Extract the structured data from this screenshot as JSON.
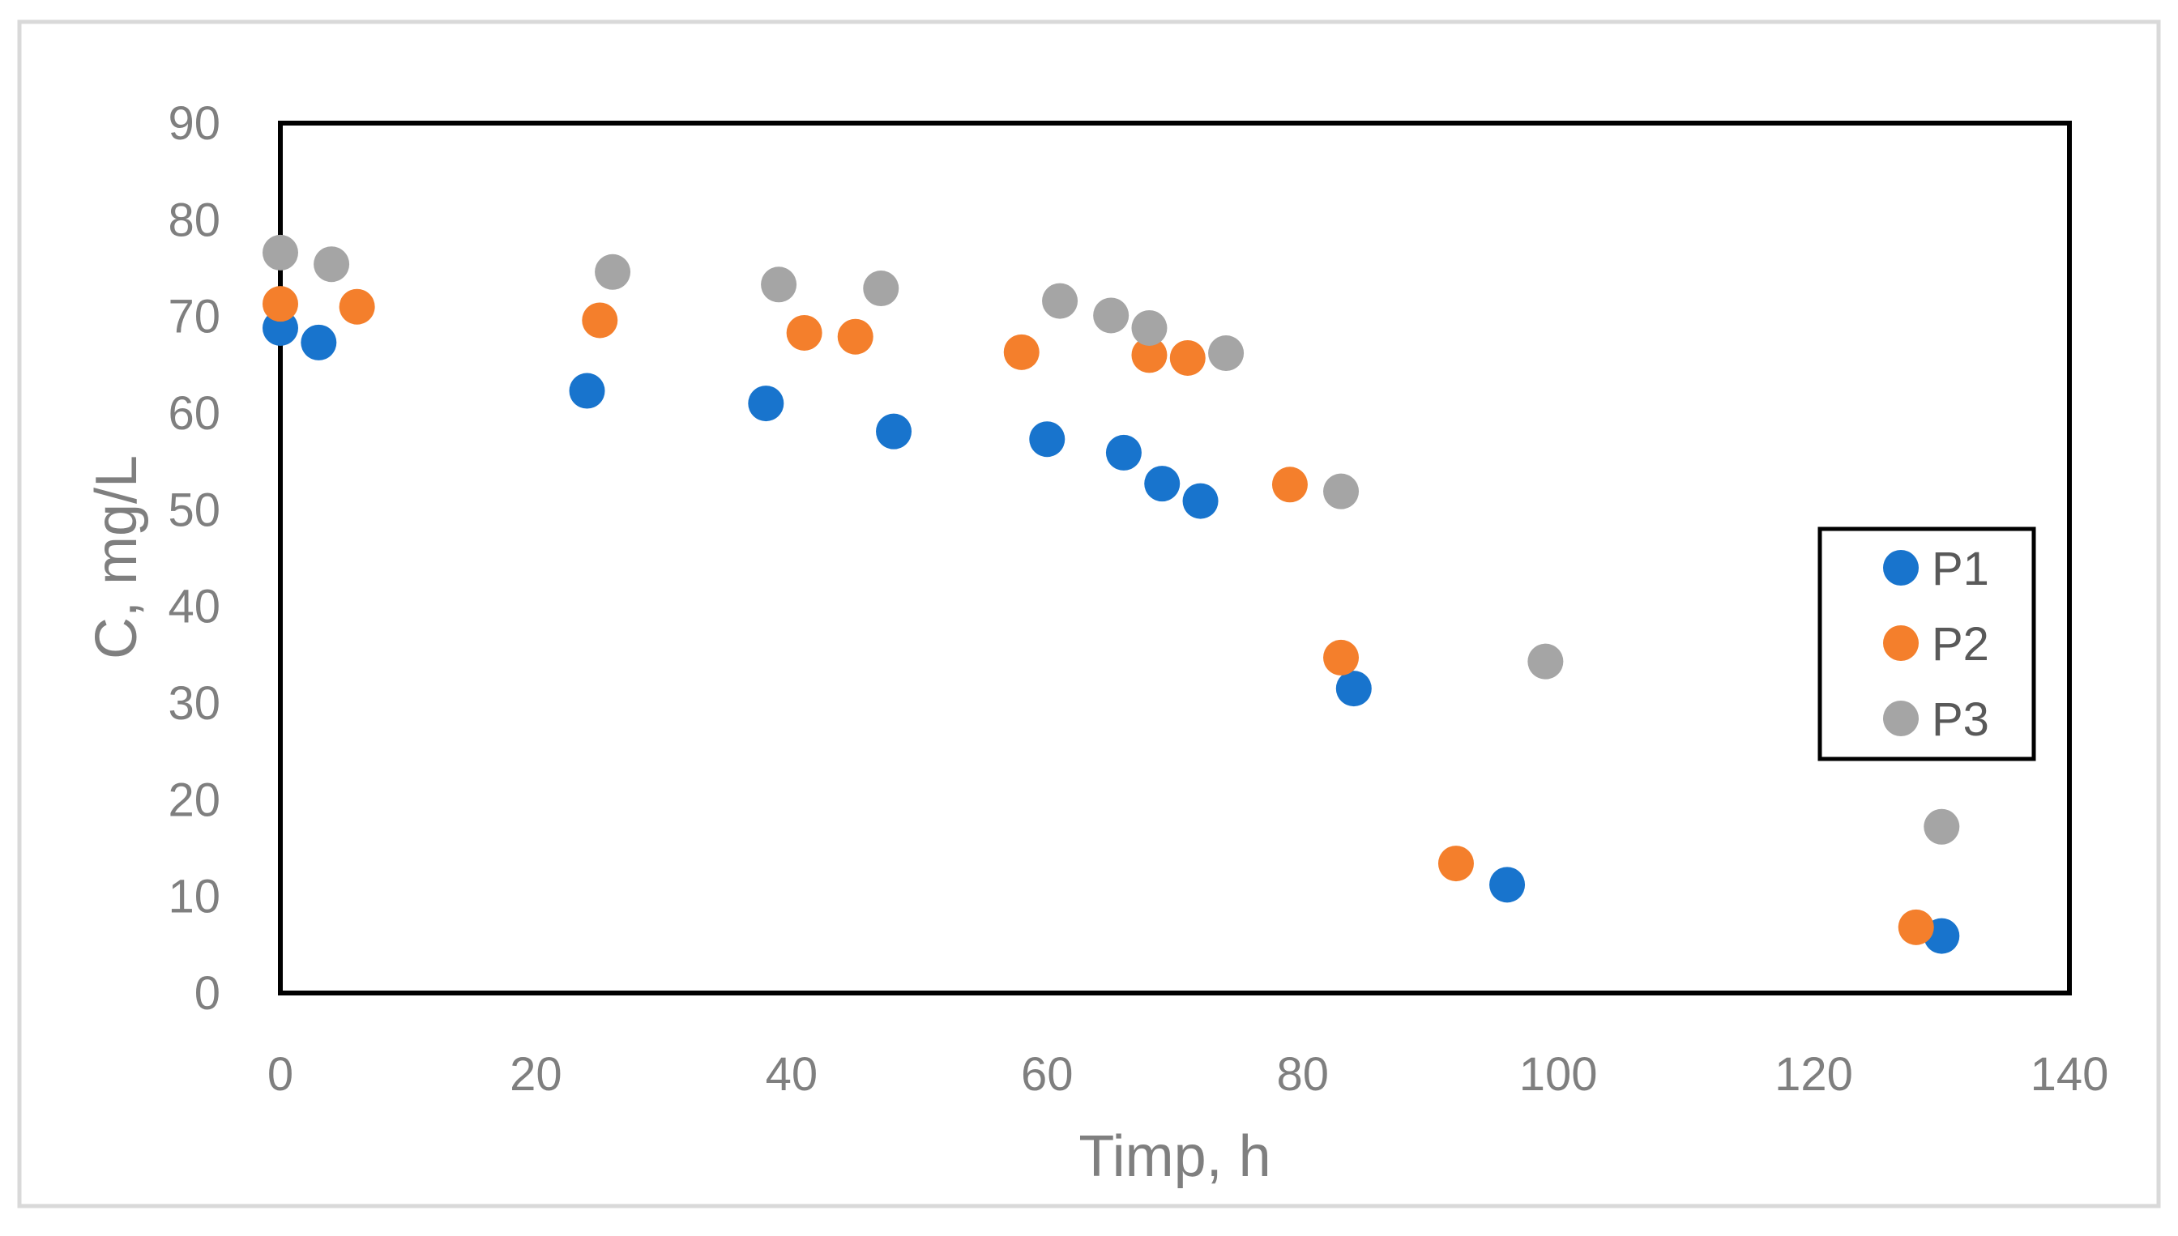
{
  "chart_data": {
    "type": "scatter",
    "xlabel": "Timp, h",
    "ylabel": "C, mg/L",
    "xlim": [
      0,
      140
    ],
    "ylim": [
      0,
      90
    ],
    "x_ticks": [
      0,
      20,
      40,
      60,
      80,
      100,
      120,
      140
    ],
    "y_ticks": [
      0,
      10,
      20,
      30,
      40,
      50,
      60,
      70,
      80,
      90
    ],
    "grid": false,
    "legend_position": "right",
    "series": [
      {
        "name": "P1",
        "color": "#1874cd",
        "points": [
          {
            "x": 0,
            "y": 68.8
          },
          {
            "x": 3,
            "y": 67.3
          },
          {
            "x": 24,
            "y": 62.3
          },
          {
            "x": 38,
            "y": 61.0
          },
          {
            "x": 48,
            "y": 58.1
          },
          {
            "x": 60,
            "y": 57.3
          },
          {
            "x": 66,
            "y": 55.9
          },
          {
            "x": 69,
            "y": 52.7
          },
          {
            "x": 72,
            "y": 50.9
          },
          {
            "x": 84,
            "y": 31.5
          },
          {
            "x": 96,
            "y": 11.2
          },
          {
            "x": 130,
            "y": 5.9
          }
        ]
      },
      {
        "name": "P2",
        "color": "#f47f2c",
        "points": [
          {
            "x": 0,
            "y": 71.3
          },
          {
            "x": 6,
            "y": 71.0
          },
          {
            "x": 25,
            "y": 69.6
          },
          {
            "x": 41,
            "y": 68.3
          },
          {
            "x": 45,
            "y": 67.9
          },
          {
            "x": 58,
            "y": 66.3
          },
          {
            "x": 68,
            "y": 66.0
          },
          {
            "x": 71,
            "y": 65.7
          },
          {
            "x": 79,
            "y": 52.6
          },
          {
            "x": 83,
            "y": 34.7
          },
          {
            "x": 92,
            "y": 13.4
          },
          {
            "x": 128,
            "y": 6.8
          }
        ]
      },
      {
        "name": "P3",
        "color": "#a5a5a5",
        "points": [
          {
            "x": 0,
            "y": 76.6
          },
          {
            "x": 4,
            "y": 75.4
          },
          {
            "x": 26,
            "y": 74.6
          },
          {
            "x": 39,
            "y": 73.3
          },
          {
            "x": 47,
            "y": 72.9
          },
          {
            "x": 61,
            "y": 71.6
          },
          {
            "x": 65,
            "y": 70.1
          },
          {
            "x": 68,
            "y": 68.8
          },
          {
            "x": 74,
            "y": 66.2
          },
          {
            "x": 83,
            "y": 51.9
          },
          {
            "x": 99,
            "y": 34.3
          },
          {
            "x": 130,
            "y": 17.2
          }
        ]
      }
    ]
  }
}
